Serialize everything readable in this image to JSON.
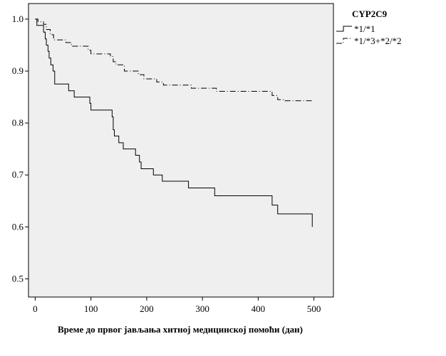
{
  "chart_data": {
    "type": "line",
    "step": true,
    "xlabel": "Време до првог јављања хитној медицинској помоћи (дан)",
    "ylabel": "",
    "xlim": [
      -12,
      535
    ],
    "ylim": [
      0.465,
      1.03
    ],
    "x_ticks": [
      0,
      100,
      200,
      300,
      400,
      500
    ],
    "y_ticks": [
      0.5,
      0.6,
      0.7,
      0.8,
      0.9,
      1.0
    ],
    "x_tick_labels": [
      "0",
      "100",
      "200",
      "300",
      "400",
      "500"
    ],
    "y_tick_labels": [
      "0.5",
      "0.6",
      "0.7",
      "0.8",
      "0.9",
      "1.0"
    ],
    "grid": false,
    "background_color": "#efefef",
    "legend": {
      "title": "CYP2C9",
      "position": "right"
    },
    "series": [
      {
        "name": "*1/*1",
        "style": "solid",
        "color": "#000000",
        "points": [
          [
            0,
            1.0
          ],
          [
            3,
            0.988
          ],
          [
            15,
            0.975
          ],
          [
            18,
            0.962
          ],
          [
            20,
            0.95
          ],
          [
            23,
            0.938
          ],
          [
            25,
            0.925
          ],
          [
            28,
            0.912
          ],
          [
            32,
            0.9
          ],
          [
            35,
            0.875
          ],
          [
            60,
            0.862
          ],
          [
            70,
            0.85
          ],
          [
            98,
            0.838
          ],
          [
            100,
            0.825
          ],
          [
            138,
            0.812
          ],
          [
            140,
            0.787
          ],
          [
            142,
            0.775
          ],
          [
            150,
            0.762
          ],
          [
            158,
            0.75
          ],
          [
            180,
            0.738
          ],
          [
            187,
            0.725
          ],
          [
            190,
            0.712
          ],
          [
            212,
            0.7
          ],
          [
            228,
            0.688
          ],
          [
            275,
            0.675
          ],
          [
            322,
            0.66
          ],
          [
            425,
            0.642
          ],
          [
            435,
            0.625
          ],
          [
            497,
            0.6
          ]
        ],
        "end_x": 497
      },
      {
        "name": "*1/*3+*2/*2",
        "style": "dash-dot",
        "color": "#000000",
        "points": [
          [
            0,
            1.0
          ],
          [
            5,
            0.995
          ],
          [
            15,
            0.99
          ],
          [
            20,
            0.98
          ],
          [
            27,
            0.97
          ],
          [
            33,
            0.96
          ],
          [
            55,
            0.955
          ],
          [
            65,
            0.948
          ],
          [
            95,
            0.94
          ],
          [
            100,
            0.933
          ],
          [
            135,
            0.928
          ],
          [
            140,
            0.918
          ],
          [
            145,
            0.912
          ],
          [
            160,
            0.9
          ],
          [
            185,
            0.893
          ],
          [
            195,
            0.885
          ],
          [
            218,
            0.879
          ],
          [
            230,
            0.873
          ],
          [
            280,
            0.867
          ],
          [
            325,
            0.861
          ],
          [
            425,
            0.853
          ],
          [
            435,
            0.845
          ],
          [
            445,
            0.843
          ]
        ],
        "end_x": 497
      }
    ]
  }
}
